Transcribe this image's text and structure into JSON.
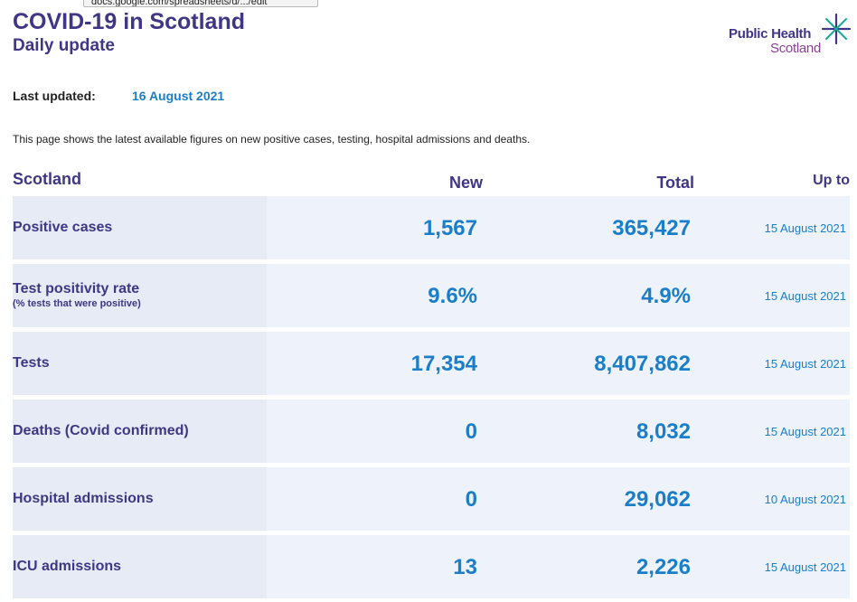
{
  "tooltip": "docs.google.com/spreadsheets/d/.../edit",
  "header": {
    "title": "COVID-19 in Scotland",
    "subtitle": "Daily update"
  },
  "logo": {
    "line1": "Public Health",
    "line2": "Scotland",
    "colors": {
      "primary": "#3f3685",
      "secondary": "#8a3f99",
      "accent": "#1aa99a"
    }
  },
  "updated": {
    "label": "Last updated:",
    "value": "16 August 2021"
  },
  "intro": "This page shows the latest available figures on new positive cases, testing, hospital admissions and deaths.",
  "table": {
    "headers": {
      "region": "Scotland",
      "new": "New",
      "total": "Total",
      "up_to": "Up to"
    },
    "rows": [
      {
        "label": "Positive cases",
        "sub": "",
        "new": "1,567",
        "total": "365,427",
        "up_to": "15 August 2021"
      },
      {
        "label": "Test positivity rate",
        "sub": "(% tests that were positive)",
        "new": "9.6%",
        "total": "4.9%",
        "up_to": "15 August 2021"
      },
      {
        "label": "Tests",
        "sub": "",
        "new": "17,354",
        "total": "8,407,862",
        "up_to": "15 August 2021"
      },
      {
        "label": "Deaths (Covid confirmed)",
        "sub": "",
        "new": "0",
        "total": "8,032",
        "up_to": "15 August 2021"
      },
      {
        "label": "Hospital admissions",
        "sub": "",
        "new": "0",
        "total": "29,062",
        "up_to": "10 August 2021"
      },
      {
        "label": "ICU admissions",
        "sub": "",
        "new": "13",
        "total": "2,226",
        "up_to": "15 August 2021"
      }
    ]
  },
  "colors": {
    "heading": "#3f3685",
    "value": "#1a7ec9",
    "row_bg": "#eef2fb",
    "label_bg": "#e6ebf6"
  }
}
